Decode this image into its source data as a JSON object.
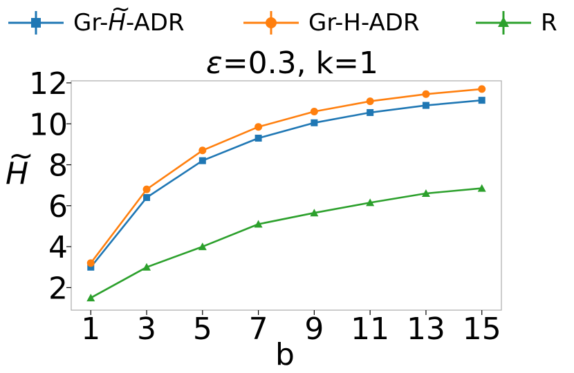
{
  "legend": [
    {
      "label": "Gr-H̃-ADR",
      "prefix": "Gr-",
      "symbol": "H",
      "suffix": "-ADR",
      "color": "#1f77b4",
      "marker": "square"
    },
    {
      "label": "Gr-H-ADR",
      "color": "#ff7f0e",
      "marker": "circle"
    },
    {
      "label": "R",
      "color": "#2ca02c",
      "marker": "triangle"
    }
  ],
  "title": {
    "epsilon_symbol": "ε",
    "text": "=0.3, k=1"
  },
  "axes": {
    "xlabel": "b",
    "ylabel_symbol": "H",
    "ylabel_accent": "~"
  },
  "chart_data": {
    "type": "line",
    "title": "ε=0.3, k=1",
    "xlabel": "b",
    "ylabel": "H̃",
    "x": [
      1,
      3,
      5,
      7,
      9,
      11,
      13,
      15
    ],
    "xticks": [
      "1",
      "3",
      "5",
      "7",
      "9",
      "11",
      "13",
      "15"
    ],
    "yticks": [
      "2",
      "4",
      "6",
      "8",
      "10",
      "12"
    ],
    "xlim": [
      0.3,
      15.7
    ],
    "ylim": [
      0.9,
      12.1
    ],
    "grid": false,
    "legend_position": "top",
    "series": [
      {
        "name": "Gr-H̃-ADR",
        "color": "#1f77b4",
        "marker": "square",
        "values": [
          3.0,
          6.4,
          8.2,
          9.3,
          10.05,
          10.55,
          10.9,
          11.15
        ]
      },
      {
        "name": "Gr-H-ADR",
        "color": "#ff7f0e",
        "marker": "circle",
        "values": [
          3.2,
          6.8,
          8.7,
          9.85,
          10.6,
          11.1,
          11.45,
          11.7
        ]
      },
      {
        "name": "R",
        "color": "#2ca02c",
        "marker": "triangle",
        "values": [
          1.5,
          3.0,
          4.0,
          5.1,
          5.65,
          6.15,
          6.6,
          6.85
        ]
      }
    ]
  }
}
